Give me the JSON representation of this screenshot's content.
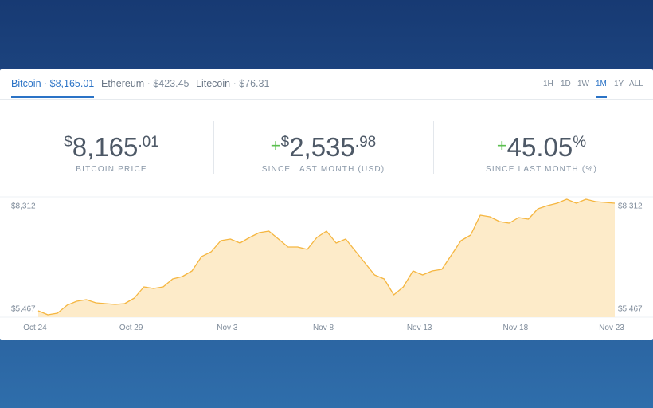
{
  "tabs": [
    {
      "name": "Bitcoin",
      "price": "$8,165.01"
    },
    {
      "name": "Ethereum",
      "price": "$423.45"
    },
    {
      "name": "Litecoin",
      "price": "$76.31"
    }
  ],
  "ranges": [
    "1H",
    "1D",
    "1W",
    "1M",
    "1Y",
    "ALL"
  ],
  "stats": [
    {
      "currency": "$",
      "whole": "8,165",
      "fraction": ".01",
      "label": "BITCOIN PRICE"
    },
    {
      "sign": "+",
      "currency": "$",
      "whole": "2,535",
      "fraction": ".98",
      "label": "SINCE LAST MONTH (USD)"
    },
    {
      "sign": "+",
      "whole": "45.05",
      "unit": "%",
      "label": "SINCE LAST MONTH (%)"
    }
  ],
  "chart_data": {
    "type": "area",
    "color": "#f5b640",
    "fill_color": "#fdebc9",
    "categories": [
      "Oct 24",
      null,
      null,
      null,
      null,
      null,
      null,
      null,
      null,
      null,
      "Oct 29",
      null,
      null,
      null,
      null,
      null,
      null,
      null,
      null,
      null,
      "Nov 3",
      null,
      null,
      null,
      null,
      null,
      null,
      null,
      null,
      null,
      "Nov 8",
      null,
      null,
      null,
      null,
      null,
      null,
      null,
      null,
      null,
      "Nov 13",
      null,
      null,
      null,
      null,
      null,
      null,
      null,
      null,
      null,
      "Nov 18",
      null,
      null,
      null,
      null,
      null,
      null,
      null,
      null,
      null,
      "Nov 23"
    ],
    "values": [
      5618,
      5524,
      5561,
      5750,
      5844,
      5881,
      5806,
      5787,
      5768,
      5787,
      5919,
      6183,
      6145,
      6183,
      6371,
      6428,
      6560,
      6899,
      7012,
      7276,
      7313,
      7219,
      7351,
      7464,
      7502,
      7313,
      7125,
      7125,
      7068,
      7351,
      7502,
      7219,
      7313,
      7031,
      6748,
      6466,
      6371,
      5994,
      6183,
      6560,
      6466,
      6560,
      6597,
      6937,
      7276,
      7408,
      7879,
      7841,
      7728,
      7690,
      7822,
      7784,
      8029,
      8105,
      8161,
      8255,
      8161,
      8255,
      8199,
      8180,
      8161
    ],
    "ylim": [
      5467,
      8312
    ],
    "yticks": [
      {
        "value": 5467,
        "label": "$5,467"
      },
      {
        "value": 8312,
        "label": "$8,312"
      }
    ]
  }
}
